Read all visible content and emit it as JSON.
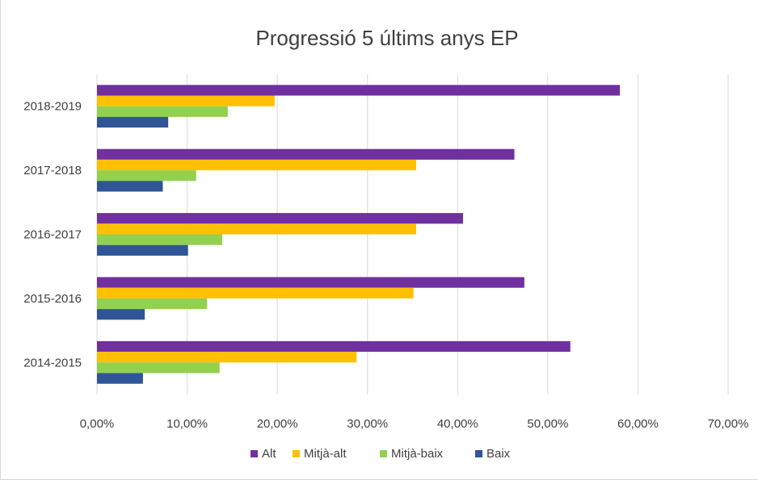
{
  "chart_data": {
    "type": "bar",
    "orientation": "horizontal",
    "title": "Progressió 5 últims anys EP",
    "xlabel": "",
    "ylabel": "",
    "categories": [
      "2014-2015",
      "2015-2016",
      "2016-2017",
      "2017-2018",
      "2018-2019"
    ],
    "series": [
      {
        "name": "Alt",
        "color": "#7030A0",
        "values": [
          52.5,
          47.4,
          40.6,
          46.3,
          58.0
        ]
      },
      {
        "name": "Mitjà-alt",
        "color": "#FFC000",
        "values": [
          28.8,
          35.1,
          35.4,
          35.4,
          19.7
        ]
      },
      {
        "name": "Mitjà-baix",
        "color": "#92D050",
        "values": [
          13.6,
          12.2,
          13.9,
          11.0,
          14.5
        ]
      },
      {
        "name": "Baix",
        "color": "#2F5597",
        "values": [
          5.1,
          5.3,
          10.1,
          7.3,
          7.9
        ]
      }
    ],
    "xlim": [
      0,
      70
    ],
    "x_ticks": [
      "0,00%",
      "10,00%",
      "20,00%",
      "30,00%",
      "40,00%",
      "50,00%",
      "60,00%",
      "70,00%"
    ],
    "grid": true,
    "legend_position": "bottom"
  }
}
